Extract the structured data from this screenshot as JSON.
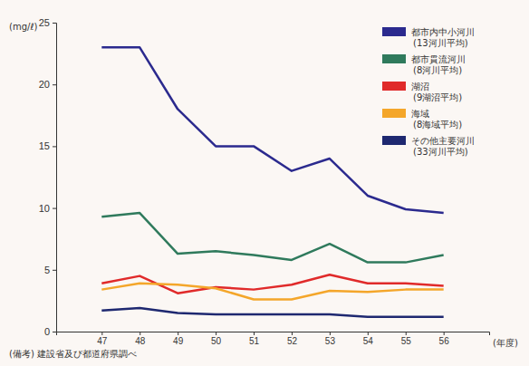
{
  "chart_data": {
    "type": "line",
    "y_label": "(mg/ℓ)",
    "x_label": "(年度)",
    "note": "(備考) 建設省及び都道府県調べ",
    "categories": [
      "47",
      "48",
      "49",
      "50",
      "51",
      "52",
      "53",
      "54",
      "55",
      "56"
    ],
    "series": [
      {
        "name": "都市内中小河川\n(13河川平均)",
        "color": "#2b2a8e",
        "values": [
          23,
          23,
          18,
          15,
          15,
          13,
          14,
          11,
          9.9,
          9.6
        ]
      },
      {
        "name": "都市貫流河川\n(8河川平均)",
        "color": "#2f7a5c",
        "values": [
          9.3,
          9.6,
          6.3,
          6.5,
          6.2,
          5.8,
          7.1,
          5.6,
          5.6,
          6.2
        ]
      },
      {
        "name": "湖沼\n(9湖沼平均)",
        "color": "#e02a2a",
        "values": [
          3.9,
          4.5,
          3.1,
          3.6,
          3.4,
          3.8,
          4.6,
          3.9,
          3.9,
          3.7
        ]
      },
      {
        "name": "海域\n(8海域平均)",
        "color": "#f4a62a",
        "values": [
          3.4,
          3.9,
          3.8,
          3.5,
          2.6,
          2.6,
          3.3,
          3.2,
          3.4,
          3.4
        ]
      },
      {
        "name": "その他主要河川\n(33河川平均)",
        "color": "#1e2870",
        "values": [
          1.7,
          1.9,
          1.5,
          1.4,
          1.4,
          1.4,
          1.4,
          1.2,
          1.2,
          1.2
        ]
      }
    ],
    "ylim": [
      0,
      25
    ],
    "yticks": [
      0,
      5,
      10,
      15,
      20,
      25
    ],
    "legend": "upper right",
    "grid": false
  }
}
